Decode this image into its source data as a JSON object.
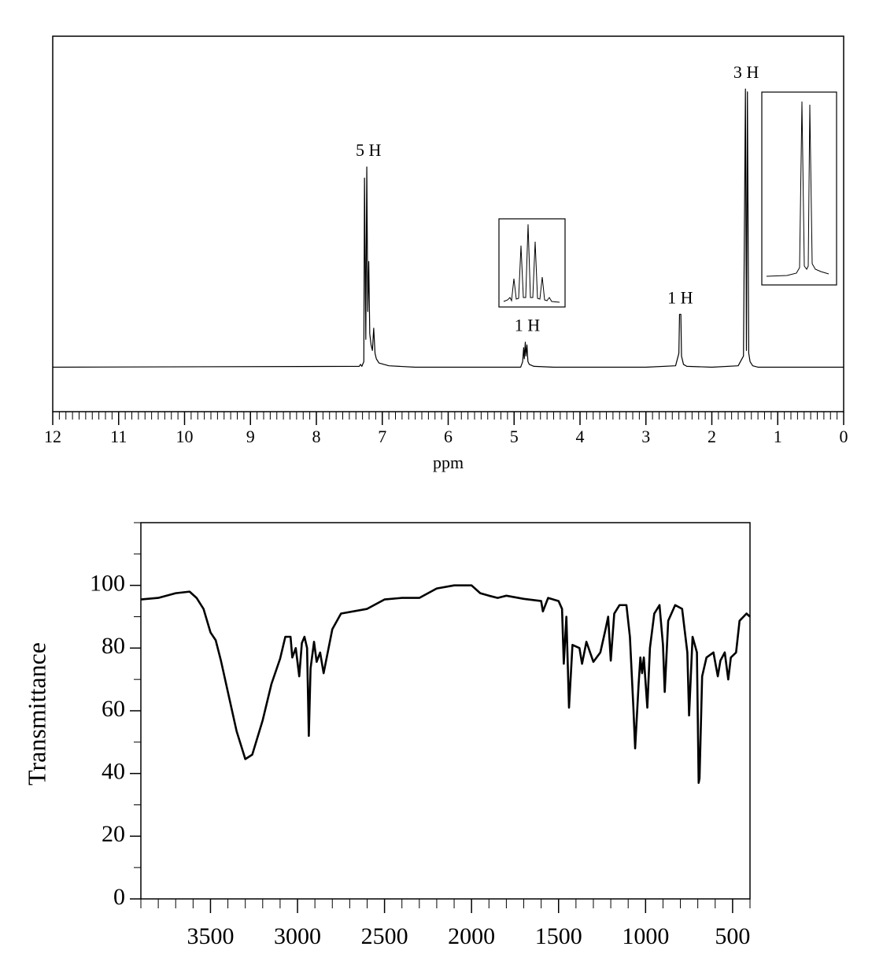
{
  "chart_data": [
    {
      "type": "line",
      "xlabel": "ppm",
      "xlim": [
        12,
        0
      ],
      "ylim": [
        -16,
        119
      ],
      "xticks": [
        12,
        11,
        10,
        9,
        8,
        7,
        6,
        5,
        4,
        3,
        2,
        1,
        0
      ],
      "series": [
        {
          "color": "#000000",
          "x": [
            12,
            7.35,
            7.33,
            7.31,
            7.28,
            7.27,
            7.25,
            7.235,
            7.22,
            7.205,
            7.19,
            7.17,
            7.15,
            7.13,
            7.11,
            7.09,
            7.05,
            6.9,
            6.5,
            4.9,
            4.87,
            4.855,
            4.845,
            4.83,
            4.82,
            4.805,
            4.79,
            4.77,
            4.7,
            4.4,
            3.0,
            2.55,
            2.5,
            2.49,
            2.47,
            2.46,
            2.43,
            2.38,
            2.0,
            1.6,
            1.52,
            1.49,
            1.475,
            1.46,
            1.44,
            1.42,
            1.38,
            1.3,
            0
          ],
          "values": [
            0,
            0.3,
            1,
            0.3,
            2,
            68,
            10,
            72,
            20,
            38,
            12,
            8,
            6,
            14,
            5,
            3,
            1.5,
            0.5,
            0,
            0,
            2,
            7,
            3,
            9,
            4,
            8,
            2,
            1,
            0.3,
            0,
            0,
            0.5,
            5,
            19,
            19,
            4,
            1,
            0.3,
            0,
            0.5,
            4,
            100,
            6,
            99,
            5,
            2,
            0.5,
            0,
            0
          ]
        }
      ],
      "annotations": [
        {
          "text": "5 H",
          "x": 7.21
        },
        {
          "text": "1 H",
          "x": 4.8
        },
        {
          "text": "1 H",
          "x": 2.48
        },
        {
          "text": "3 H",
          "x": 1.48
        }
      ]
    },
    {
      "type": "line",
      "ylabel": "Transmittance",
      "xlim": [
        3900,
        400
      ],
      "ylim": [
        0,
        120
      ],
      "xticks": [
        3500,
        3000,
        2500,
        2000,
        1500,
        1000,
        500
      ],
      "yticks": [
        0,
        20,
        40,
        60,
        80,
        100
      ],
      "series": [
        {
          "color": "#000000",
          "x": [
            3900,
            3800,
            3700,
            3620,
            3580,
            3540,
            3500,
            3470,
            3440,
            3400,
            3350,
            3300,
            3260,
            3200,
            3150,
            3100,
            3070,
            3040,
            3030,
            3010,
            2990,
            2975,
            2960,
            2945,
            2935,
            2925,
            2905,
            2890,
            2870,
            2850,
            2800,
            2750,
            2600,
            2500,
            2400,
            2300,
            2200,
            2100,
            2000,
            1950,
            1900,
            1850,
            1800,
            1700,
            1600,
            1590,
            1560,
            1500,
            1480,
            1470,
            1455,
            1440,
            1420,
            1380,
            1365,
            1340,
            1300,
            1260,
            1230,
            1215,
            1200,
            1180,
            1150,
            1110,
            1090,
            1070,
            1060,
            1040,
            1030,
            1020,
            1010,
            990,
            975,
            950,
            920,
            900,
            890,
            870,
            830,
            790,
            760,
            750,
            730,
            705,
            695,
            690,
            675,
            650,
            610,
            585,
            570,
            545,
            525,
            510,
            480,
            460,
            420,
            400
          ],
          "values": [
            95.5,
            96,
            97.5,
            98,
            96,
            92.5,
            85,
            82.5,
            76,
            66,
            53.5,
            44.6,
            46,
            57,
            68.5,
            76.6,
            83.6,
            83.6,
            77,
            80,
            71,
            81.6,
            83.6,
            80,
            52,
            73.5,
            82,
            75.6,
            78.6,
            72,
            86,
            91,
            92.5,
            95.5,
            96,
            96,
            99,
            100,
            100,
            97.5,
            96.7,
            96,
            96.7,
            95.7,
            95,
            91.7,
            96,
            95,
            92.5,
            75,
            90,
            61,
            81,
            80,
            75,
            82,
            75.6,
            78.6,
            86,
            90,
            76,
            91,
            93.7,
            93.7,
            83.6,
            61,
            48,
            68.5,
            77,
            72,
            77,
            61,
            80,
            91,
            93.7,
            81,
            66,
            88.7,
            93.7,
            92.5,
            78.6,
            58.5,
            83.6,
            78.6,
            37,
            38.5,
            71,
            77,
            78.6,
            71,
            76,
            78.6,
            70,
            77,
            78.6,
            88.7,
            91,
            90
          ]
        }
      ]
    }
  ]
}
